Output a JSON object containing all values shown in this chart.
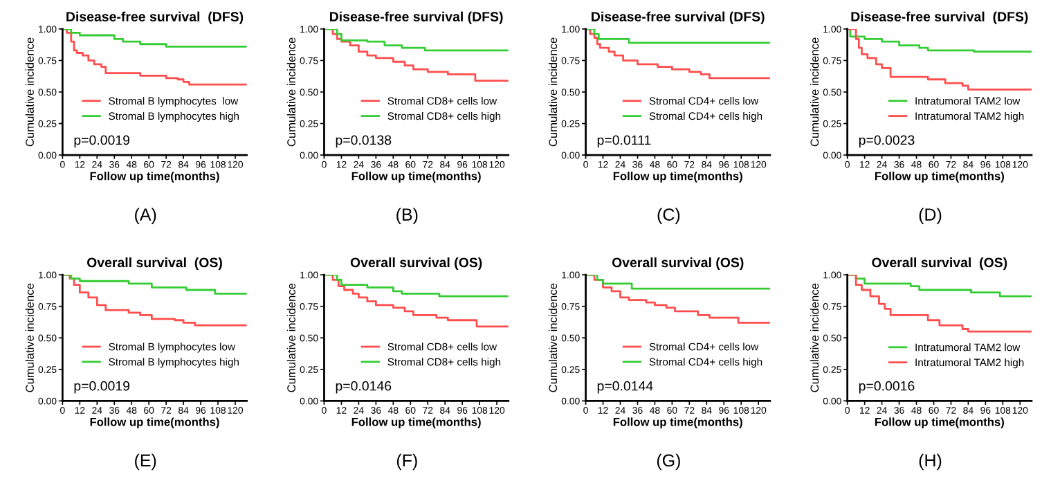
{
  "chart_data": [
    {
      "type": "step",
      "title": "Disease-free survival  (DFS)",
      "xlabel": "Follow up time(months)",
      "ylabel": "Cumulative incidence",
      "xlim": [
        0,
        128
      ],
      "xticks": [
        0,
        12,
        24,
        36,
        48,
        60,
        72,
        84,
        96,
        108,
        120
      ],
      "ylim": [
        0,
        1
      ],
      "yticks": [
        {
          "value": 0,
          "label": "0.00"
        },
        {
          "value": 0.25,
          "label": "0.25"
        },
        {
          "value": 0.5,
          "label": "0.50"
        },
        {
          "value": 0.75,
          "label": "0.75"
        },
        {
          "value": 1,
          "label": "1.00"
        }
      ],
      "legend": "right",
      "annotations": [
        "p=0.0019",
        "(A)"
      ],
      "series": [
        {
          "name": "Stromal B lymphocytes  low",
          "color": "#ff4d4d",
          "x": [
            0,
            3,
            6,
            8,
            10,
            14,
            18,
            22,
            27,
            30,
            54,
            72,
            80,
            84,
            88,
            128
          ],
          "values": [
            1,
            0.97,
            0.9,
            0.83,
            0.81,
            0.79,
            0.75,
            0.72,
            0.7,
            0.65,
            0.63,
            0.61,
            0.6,
            0.58,
            0.56,
            0.56
          ]
        },
        {
          "name": "Stromal B lymphocytes high",
          "color": "#33cc33",
          "x": [
            0,
            6,
            12,
            36,
            42,
            54,
            72,
            128
          ],
          "values": [
            1,
            0.97,
            0.95,
            0.92,
            0.9,
            0.88,
            0.86,
            0.86
          ]
        }
      ]
    },
    {
      "type": "step",
      "title": "Disease-free survival (DFS)",
      "xlabel": "Follow up time(months)",
      "ylabel": "Cumulative incidence",
      "xlim": [
        0,
        128
      ],
      "xticks": [
        0,
        12,
        24,
        36,
        48,
        60,
        72,
        84,
        96,
        108,
        120
      ],
      "ylim": [
        0,
        1
      ],
      "yticks": [
        {
          "value": 0,
          "label": "0.00"
        },
        {
          "value": 0.25,
          "label": "0.25"
        },
        {
          "value": 0.5,
          "label": "0.50"
        },
        {
          "value": 0.75,
          "label": "0.75"
        },
        {
          "value": 1,
          "label": "1.00"
        }
      ],
      "legend": "right",
      "annotations": [
        "p=0.0138",
        "(B)"
      ],
      "series": [
        {
          "name": "Stromal CD8+ cells low",
          "color": "#ff4d4d",
          "x": [
            0,
            6,
            9,
            12,
            18,
            24,
            30,
            36,
            48,
            56,
            62,
            72,
            86,
            105,
            128
          ],
          "values": [
            1,
            0.96,
            0.92,
            0.9,
            0.87,
            0.82,
            0.79,
            0.77,
            0.74,
            0.71,
            0.68,
            0.66,
            0.64,
            0.59,
            0.59
          ]
        },
        {
          "name": "Stromal CD8+ cells high",
          "color": "#33cc33",
          "x": [
            0,
            9,
            12,
            30,
            42,
            54,
            70,
            128
          ],
          "values": [
            1,
            0.96,
            0.91,
            0.9,
            0.87,
            0.85,
            0.83,
            0.83
          ]
        }
      ]
    },
    {
      "type": "step",
      "title": "Disease-free survival (DFS)",
      "xlabel": "Follow up time(months)",
      "ylabel": "Cumulative incidence",
      "xlim": [
        0,
        128
      ],
      "xticks": [
        0,
        12,
        24,
        36,
        48,
        60,
        72,
        84,
        96,
        108,
        120
      ],
      "ylim": [
        0,
        1
      ],
      "yticks": [
        {
          "value": 0,
          "label": "0.00"
        },
        {
          "value": 0.25,
          "label": "0.25"
        },
        {
          "value": 0.5,
          "label": "0.50"
        },
        {
          "value": 0.75,
          "label": "0.75"
        },
        {
          "value": 1,
          "label": "1.00"
        }
      ],
      "legend": "right",
      "annotations": [
        "p=0.0111",
        "(C)"
      ],
      "series": [
        {
          "name": "Stromal CD4+ cells low",
          "color": "#ff4d4d",
          "x": [
            0,
            3,
            6,
            8,
            10,
            16,
            20,
            26,
            36,
            50,
            60,
            72,
            80,
            86,
            128
          ],
          "values": [
            1,
            0.96,
            0.93,
            0.88,
            0.85,
            0.82,
            0.79,
            0.75,
            0.72,
            0.7,
            0.68,
            0.66,
            0.64,
            0.61,
            0.61
          ]
        },
        {
          "name": "Stromal CD4+ cells high",
          "color": "#33cc33",
          "x": [
            0,
            6,
            9,
            30,
            128
          ],
          "values": [
            1,
            0.96,
            0.92,
            0.89,
            0.89
          ]
        }
      ]
    },
    {
      "type": "step",
      "title": "Disease-free survival  (DFS)",
      "xlabel": "Follow up time(months)",
      "ylabel": "Cumulative incidence",
      "xlim": [
        0,
        128
      ],
      "xticks": [
        0,
        12,
        24,
        36,
        48,
        60,
        72,
        84,
        96,
        108,
        120
      ],
      "ylim": [
        0,
        1
      ],
      "yticks": [
        {
          "value": 0,
          "label": "0.00"
        },
        {
          "value": 0.25,
          "label": "0.25"
        },
        {
          "value": 0.5,
          "label": "0.50"
        },
        {
          "value": 0.75,
          "label": "0.75"
        },
        {
          "value": 1,
          "label": "1.00"
        }
      ],
      "legend": "right",
      "annotations": [
        "p=0.0023",
        "(D)"
      ],
      "series": [
        {
          "name": "Intratumoral TAM2 low",
          "color": "#33cc33",
          "x": [
            0,
            2,
            12,
            24,
            36,
            50,
            56,
            88,
            128
          ],
          "values": [
            1,
            0.94,
            0.92,
            0.9,
            0.87,
            0.85,
            0.83,
            0.82,
            0.82
          ]
        },
        {
          "name": "Intratumoral TAM2 high",
          "color": "#ff4d4d",
          "x": [
            0,
            6,
            8,
            10,
            14,
            20,
            24,
            30,
            56,
            68,
            80,
            84,
            128
          ],
          "values": [
            1,
            0.92,
            0.85,
            0.8,
            0.77,
            0.72,
            0.69,
            0.62,
            0.6,
            0.57,
            0.55,
            0.52,
            0.52
          ]
        }
      ]
    },
    {
      "type": "step",
      "title": "Overall survival  (OS)",
      "xlabel": "Follow up time(months)",
      "ylabel": "Cumulative incidence",
      "xlim": [
        0,
        128
      ],
      "xticks": [
        0,
        12,
        24,
        36,
        48,
        60,
        72,
        84,
        96,
        108,
        120
      ],
      "ylim": [
        0,
        1
      ],
      "yticks": [
        {
          "value": 0,
          "label": "0.00"
        },
        {
          "value": 0.25,
          "label": "0.25"
        },
        {
          "value": 0.5,
          "label": "0.50"
        },
        {
          "value": 0.75,
          "label": "0.75"
        },
        {
          "value": 1,
          "label": "1.00"
        }
      ],
      "legend": "right",
      "annotations": [
        "p=0.0019",
        "(E)"
      ],
      "series": [
        {
          "name": "Stromal B lymphocytes low",
          "color": "#ff4d4d",
          "x": [
            0,
            5,
            8,
            12,
            18,
            24,
            30,
            46,
            54,
            62,
            78,
            84,
            92,
            128
          ],
          "values": [
            1,
            0.97,
            0.92,
            0.86,
            0.82,
            0.76,
            0.72,
            0.7,
            0.68,
            0.65,
            0.64,
            0.62,
            0.6,
            0.6
          ]
        },
        {
          "name": "Stromal B lymphocytes high",
          "color": "#33cc33",
          "x": [
            0,
            6,
            12,
            46,
            62,
            86,
            106,
            128
          ],
          "values": [
            1,
            0.97,
            0.95,
            0.93,
            0.9,
            0.88,
            0.85,
            0.85
          ]
        }
      ]
    },
    {
      "type": "step",
      "title": "Overall survival (OS)",
      "xlabel": "Follow up time(months)",
      "ylabel": "Cumulative incidence",
      "xlim": [
        0,
        128
      ],
      "xticks": [
        0,
        12,
        24,
        36,
        48,
        60,
        72,
        84,
        96,
        108,
        120
      ],
      "ylim": [
        0,
        1
      ],
      "yticks": [
        {
          "value": 0,
          "label": "0.00"
        },
        {
          "value": 0.25,
          "label": "0.25"
        },
        {
          "value": 0.5,
          "label": "0.50"
        },
        {
          "value": 0.75,
          "label": "0.75"
        },
        {
          "value": 1,
          "label": "1.00"
        }
      ],
      "legend": "right",
      "annotations": [
        "p=0.0146",
        "(F)"
      ],
      "series": [
        {
          "name": "Stromal CD8+ cells low",
          "color": "#ff4d4d",
          "x": [
            0,
            6,
            10,
            14,
            20,
            24,
            30,
            36,
            48,
            56,
            62,
            78,
            86,
            106,
            128
          ],
          "values": [
            1,
            0.96,
            0.91,
            0.88,
            0.85,
            0.82,
            0.79,
            0.76,
            0.74,
            0.71,
            0.68,
            0.66,
            0.64,
            0.59,
            0.59
          ]
        },
        {
          "name": "Stromal CD8+ cells high",
          "color": "#33cc33",
          "x": [
            0,
            9,
            12,
            30,
            48,
            54,
            80,
            128
          ],
          "values": [
            1,
            0.96,
            0.92,
            0.9,
            0.87,
            0.85,
            0.83,
            0.83
          ]
        }
      ]
    },
    {
      "type": "step",
      "title": "Overall survival (OS)",
      "xlabel": "Follow up time(months)",
      "ylabel": "Cumulative incidence",
      "xlim": [
        0,
        128
      ],
      "xticks": [
        0,
        12,
        24,
        36,
        48,
        60,
        72,
        84,
        96,
        108,
        120
      ],
      "ylim": [
        0,
        1
      ],
      "yticks": [
        {
          "value": 0,
          "label": "0.00"
        },
        {
          "value": 0.25,
          "label": "0.25"
        },
        {
          "value": 0.5,
          "label": "0.50"
        },
        {
          "value": 0.75,
          "label": "0.75"
        },
        {
          "value": 1,
          "label": "1.00"
        }
      ],
      "legend": "right",
      "annotations": [
        "p=0.0144",
        "(G)"
      ],
      "series": [
        {
          "name": "Stromal CD4+ cells low",
          "color": "#ff4d4d",
          "x": [
            0,
            6,
            12,
            18,
            24,
            30,
            42,
            48,
            56,
            62,
            78,
            86,
            106,
            128
          ],
          "values": [
            1,
            0.96,
            0.9,
            0.87,
            0.82,
            0.8,
            0.78,
            0.76,
            0.74,
            0.71,
            0.68,
            0.66,
            0.62,
            0.62
          ]
        },
        {
          "name": "Stromal CD4+ cells high",
          "color": "#33cc33",
          "x": [
            0,
            8,
            12,
            32,
            128
          ],
          "values": [
            1,
            0.96,
            0.93,
            0.89,
            0.89
          ]
        }
      ]
    },
    {
      "type": "step",
      "title": "Overall survival  (OS)",
      "xlabel": "Follow up time(months)",
      "ylabel": "Cumulative incidence",
      "xlim": [
        0,
        128
      ],
      "xticks": [
        0,
        12,
        24,
        36,
        48,
        60,
        72,
        84,
        96,
        108,
        120
      ],
      "ylim": [
        0,
        1
      ],
      "yticks": [
        {
          "value": 0,
          "label": "0.00"
        },
        {
          "value": 0.25,
          "label": "0.25"
        },
        {
          "value": 0.5,
          "label": "0.50"
        },
        {
          "value": 0.75,
          "label": "0.75"
        },
        {
          "value": 1,
          "label": "1.00"
        }
      ],
      "legend": "bottom right",
      "annotations": [
        "p=0.0016",
        "(H)"
      ],
      "series": [
        {
          "name": "Intratumoral TAM2 low",
          "color": "#33cc33",
          "x": [
            0,
            6,
            12,
            44,
            50,
            86,
            106,
            128
          ],
          "values": [
            1,
            0.97,
            0.93,
            0.91,
            0.88,
            0.86,
            0.83,
            0.83
          ]
        },
        {
          "name": "Intratumoral TAM2 high",
          "color": "#ff4d4d",
          "x": [
            0,
            6,
            10,
            16,
            22,
            26,
            30,
            56,
            64,
            80,
            84,
            128
          ],
          "values": [
            1,
            0.92,
            0.88,
            0.83,
            0.77,
            0.73,
            0.68,
            0.64,
            0.6,
            0.57,
            0.55,
            0.55
          ]
        }
      ]
    }
  ]
}
